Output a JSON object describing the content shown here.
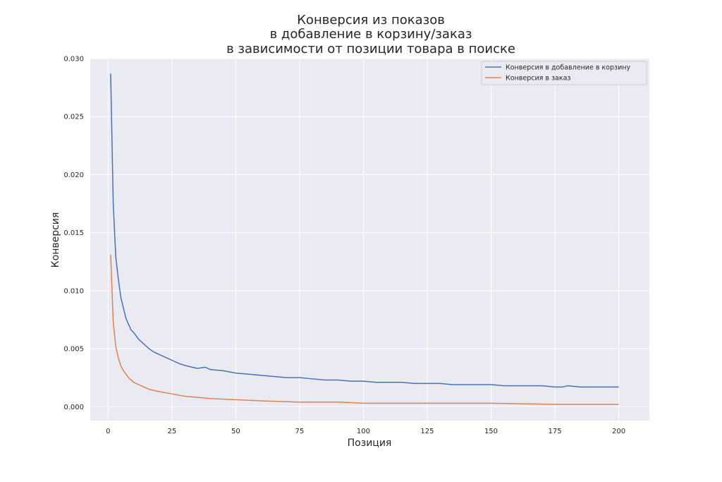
{
  "chart_data": {
    "type": "line",
    "title_lines": [
      "Конверсия из показов",
      "в добавление в корзину/заказ",
      "в зависимости от позиции товара в поиске"
    ],
    "xlabel": "Позиция",
    "ylabel": "Конверсия",
    "xlim": [
      -7,
      212
    ],
    "ylim": [
      -0.0012,
      0.03
    ],
    "xticks": [
      0,
      25,
      50,
      75,
      100,
      125,
      150,
      175,
      200
    ],
    "xtick_labels": [
      "0",
      "25",
      "50",
      "75",
      "100",
      "125",
      "150",
      "175",
      "200"
    ],
    "yticks": [
      0.0,
      0.005,
      0.01,
      0.015,
      0.02,
      0.025,
      0.03
    ],
    "ytick_labels": [
      "0.000",
      "0.005",
      "0.010",
      "0.015",
      "0.020",
      "0.025",
      "0.030"
    ],
    "grid": true,
    "legend_position": "top-right",
    "style": {
      "plot_background": "#eaeaf2",
      "grid_color": "#ffffff"
    },
    "series": [
      {
        "name": "Конверсия в добавление в корзину",
        "color": "#4c72b0",
        "points": [
          [
            1,
            0.0287
          ],
          [
            2,
            0.0175
          ],
          [
            3,
            0.0129
          ],
          [
            4,
            0.011
          ],
          [
            5,
            0.0094
          ],
          [
            6,
            0.0085
          ],
          [
            7,
            0.0076
          ],
          [
            8,
            0.0071
          ],
          [
            9,
            0.0066
          ],
          [
            10,
            0.0064
          ],
          [
            12,
            0.0058
          ],
          [
            14,
            0.0054
          ],
          [
            16,
            0.005
          ],
          [
            18,
            0.0047
          ],
          [
            20,
            0.0045
          ],
          [
            22,
            0.0043
          ],
          [
            25,
            0.004
          ],
          [
            28,
            0.0037
          ],
          [
            31,
            0.0035
          ],
          [
            35,
            0.0033
          ],
          [
            38,
            0.0034
          ],
          [
            40,
            0.0032
          ],
          [
            45,
            0.0031
          ],
          [
            50,
            0.0029
          ],
          [
            55,
            0.0028
          ],
          [
            60,
            0.0027
          ],
          [
            65,
            0.0026
          ],
          [
            70,
            0.0025
          ],
          [
            75,
            0.0025
          ],
          [
            80,
            0.0024
          ],
          [
            85,
            0.0023
          ],
          [
            90,
            0.0023
          ],
          [
            95,
            0.0022
          ],
          [
            100,
            0.0022
          ],
          [
            105,
            0.0021
          ],
          [
            110,
            0.0021
          ],
          [
            115,
            0.0021
          ],
          [
            120,
            0.002
          ],
          [
            125,
            0.002
          ],
          [
            130,
            0.002
          ],
          [
            135,
            0.0019
          ],
          [
            140,
            0.0019
          ],
          [
            145,
            0.0019
          ],
          [
            150,
            0.0019
          ],
          [
            155,
            0.0018
          ],
          [
            160,
            0.0018
          ],
          [
            165,
            0.0018
          ],
          [
            170,
            0.0018
          ],
          [
            175,
            0.0017
          ],
          [
            178,
            0.0017
          ],
          [
            180,
            0.0018
          ],
          [
            185,
            0.0017
          ],
          [
            190,
            0.0017
          ],
          [
            195,
            0.0017
          ],
          [
            200,
            0.0017
          ]
        ]
      },
      {
        "name": "Конверсия в заказ",
        "color": "#dd8452",
        "points": [
          [
            1,
            0.0131
          ],
          [
            2,
            0.0073
          ],
          [
            3,
            0.0052
          ],
          [
            4,
            0.0042
          ],
          [
            5,
            0.0035
          ],
          [
            6,
            0.0031
          ],
          [
            7,
            0.0028
          ],
          [
            8,
            0.0025
          ],
          [
            9,
            0.0023
          ],
          [
            10,
            0.0021
          ],
          [
            12,
            0.0019
          ],
          [
            14,
            0.0017
          ],
          [
            16,
            0.0015
          ],
          [
            18,
            0.0014
          ],
          [
            20,
            0.0013
          ],
          [
            25,
            0.0011
          ],
          [
            30,
            0.0009
          ],
          [
            35,
            0.0008
          ],
          [
            40,
            0.0007
          ],
          [
            50,
            0.0006
          ],
          [
            60,
            0.0005
          ],
          [
            75,
            0.0004
          ],
          [
            90,
            0.0004
          ],
          [
            100,
            0.0003
          ],
          [
            125,
            0.0003
          ],
          [
            150,
            0.0003
          ],
          [
            175,
            0.0002
          ],
          [
            200,
            0.0002
          ]
        ]
      }
    ]
  }
}
